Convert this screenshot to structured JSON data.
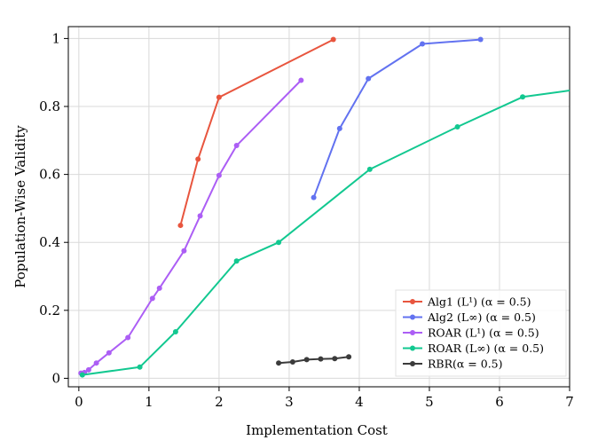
{
  "chart_data": {
    "type": "line",
    "xlabel": "Implementation Cost",
    "ylabel": "Population-Wise Validity",
    "xlim": [
      -0.15,
      7
    ],
    "ylim": [
      -0.025,
      1.035
    ],
    "xticks": [
      0,
      1,
      2,
      3,
      4,
      5,
      6,
      7
    ],
    "xtick_labels": [
      "0",
      "1",
      "2",
      "3",
      "4",
      "5",
      "6",
      "7"
    ],
    "yticks": [
      0,
      0.2,
      0.4,
      0.6,
      0.8,
      1
    ],
    "ytick_labels": [
      "0",
      "0.2",
      "0.4",
      "0.6",
      "0.8",
      "1"
    ],
    "grid": true,
    "legend_position": "bottom-right",
    "series": [
      {
        "name": "Alg1 (L¹) (α = 0.5)",
        "color": "#e8553e",
        "x": [
          1.45,
          1.7,
          2.0,
          3.63
        ],
        "y": [
          0.45,
          0.645,
          0.827,
          0.997
        ]
      },
      {
        "name": "Alg2 (L∞) (α = 0.5)",
        "color": "#6272f0",
        "x": [
          3.35,
          3.72,
          4.13,
          4.9,
          5.73
        ],
        "y": [
          0.532,
          0.735,
          0.882,
          0.984,
          0.997
        ]
      },
      {
        "name": "ROAR (L¹) (α = 0.5)",
        "color": "#ac5ef5",
        "x": [
          0.03,
          0.08,
          0.14,
          0.25,
          0.43,
          0.7,
          1.05,
          1.15,
          1.5,
          1.73,
          2.0,
          2.25,
          3.17
        ],
        "y": [
          0.015,
          0.017,
          0.025,
          0.045,
          0.075,
          0.12,
          0.235,
          0.265,
          0.375,
          0.478,
          0.597,
          0.685,
          0.877
        ]
      },
      {
        "name": "ROAR (L∞) (α = 0.5)",
        "color": "#12c890",
        "x": [
          0.05,
          0.87,
          1.38,
          2.25,
          2.85,
          4.15,
          5.4,
          6.33,
          7.0
        ],
        "y": [
          0.01,
          0.033,
          0.137,
          0.345,
          0.4,
          0.615,
          0.74,
          0.828,
          0.847
        ]
      },
      {
        "name": "RBR(α = 0.5)",
        "color": "#3b3b3b",
        "x": [
          2.85,
          3.05,
          3.25,
          3.45,
          3.65,
          3.85
        ],
        "y": [
          0.045,
          0.048,
          0.055,
          0.057,
          0.058,
          0.063
        ]
      }
    ]
  }
}
